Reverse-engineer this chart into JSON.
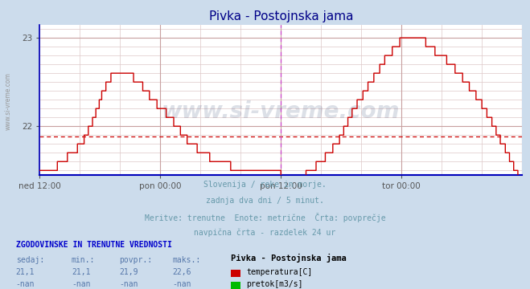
{
  "title": "Pivka - Postojnska jama",
  "bg_color": "#ccdcec",
  "plot_bg_color": "#ffffff",
  "grid_color_major": "#c8a0a0",
  "grid_color_minor": "#ddc8c8",
  "line_color": "#cc0000",
  "avg_line_color": "#cc0000",
  "vline_color": "#cc44cc",
  "border_color_bottom": "#0000bb",
  "border_color_left": "#0000bb",
  "title_color": "#000088",
  "ylabel_color": "#888888",
  "tick_color": "#555555",
  "footer_color": "#6699aa",
  "legend_header_color": "#0000cc",
  "legend_val_color": "#5577aa",
  "legend_series_title_color": "#000000",
  "legend_series_label_color": "#000000",
  "ylim": [
    21.45,
    23.15
  ],
  "ytick_vals": [
    22.0,
    23.0
  ],
  "ytick_labels": [
    "22",
    "23"
  ],
  "xlim": [
    0,
    576
  ],
  "xtick_positions": [
    0,
    144,
    288,
    432,
    576
  ],
  "xtick_labels": [
    "ned 12:00",
    "pon 00:00",
    "pon 12:00",
    "tor 00:00",
    ""
  ],
  "vline_x": 288,
  "avg_value": 21.88,
  "watermark": "www.si-vreme.com",
  "sidebar_text": "www.si-vreme.com",
  "footer_lines": [
    "Slovenija / reke in morje.",
    "zadnja dva dni / 5 minut.",
    "Meritve: trenutne  Enote: metrične  Črta: povprečje",
    "navpična črta - razdelek 24 ur"
  ],
  "legend_title": "ZGODOVINSKE IN TRENUTNE VREDNOSTI",
  "legend_headers": [
    "sedaj:",
    "min.:",
    "povpr.:",
    "maks.:"
  ],
  "legend_row1": [
    "21,1",
    "21,1",
    "21,9",
    "22,6"
  ],
  "legend_row2": [
    "-nan",
    "-nan",
    "-nan",
    "-nan"
  ],
  "legend_series_title": "Pivka - Postojnska jama",
  "legend_series1": "temperatura[C]",
  "legend_series2": "pretok[m3/s]",
  "legend_color1": "#cc0000",
  "legend_color2": "#00bb00"
}
